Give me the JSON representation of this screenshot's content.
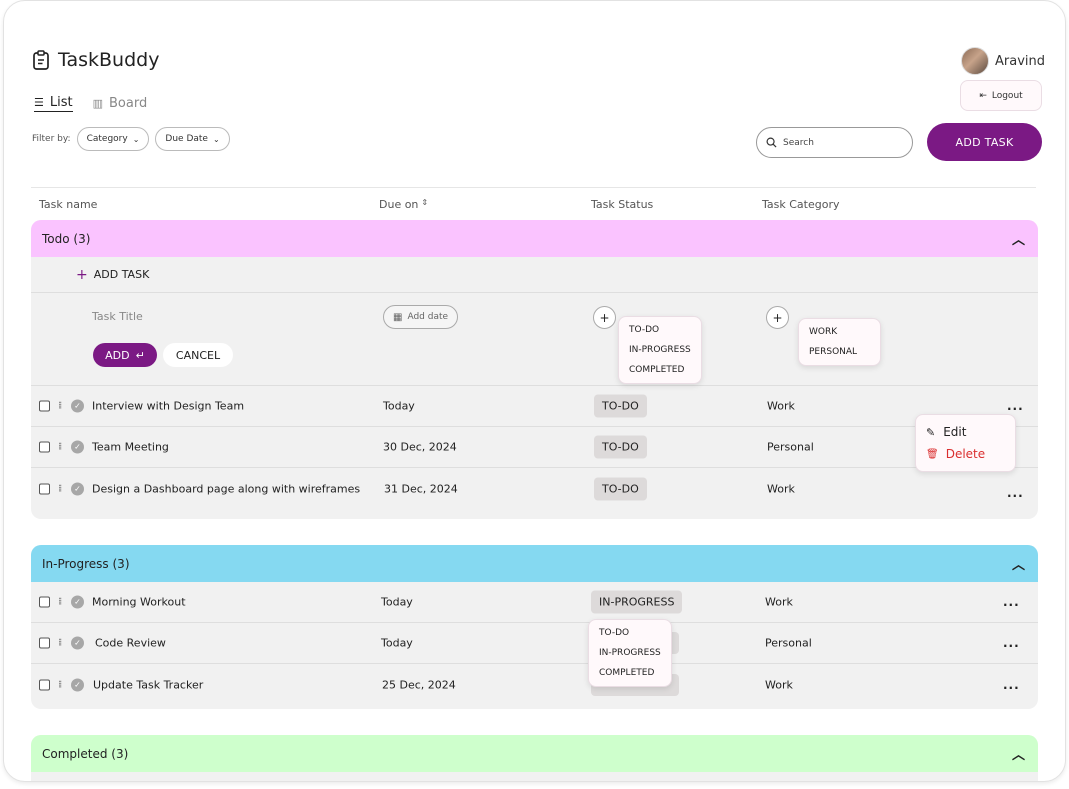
{
  "app": {
    "title": "TaskBuddy"
  },
  "views": [
    {
      "label": "List",
      "icon": "list-icon",
      "active": true
    },
    {
      "label": "Board",
      "icon": "board-icon",
      "active": false
    }
  ],
  "filters": {
    "label": "Filter by:",
    "category": "Category",
    "due_date": "Due Date"
  },
  "user": {
    "name": "Aravind",
    "logout_label": "Logout"
  },
  "search": {
    "placeholder": "Search"
  },
  "add_task_button": "ADD TASK",
  "columns": {
    "name": "Task name",
    "due": "Due on",
    "status": "Task Status",
    "category": "Task Category"
  },
  "todo": {
    "title": "Todo (3)",
    "add_task_label": "ADD TASK",
    "form": {
      "title_placeholder": "Task Title",
      "add_date": "Add date",
      "add_label": "ADD",
      "cancel_label": "CANCEL",
      "status_options": [
        "TO-DO",
        "IN-PROGRESS",
        "COMPLETED"
      ],
      "category_options": [
        "WORK",
        "PERSONAL"
      ]
    },
    "rows": [
      {
        "name": "Interview with Design Team",
        "due": "Today",
        "status": "TO-DO",
        "category": "Work"
      },
      {
        "name": "Team Meeting",
        "due": "30 Dec, 2024",
        "status": "TO-DO",
        "category": "Personal"
      },
      {
        "name": "Design a Dashboard page along with wireframes",
        "due": "31 Dec, 2024",
        "status": "TO-DO",
        "category": "Work"
      }
    ],
    "row_menu": {
      "edit": "Edit",
      "delete": "Delete"
    }
  },
  "inprogress": {
    "title": "In-Progress (3)",
    "rows": [
      {
        "name": "Morning Workout",
        "due": "Today",
        "status": "IN-PROGRESS",
        "category": "Work"
      },
      {
        "name": "Code Review",
        "due": "Today",
        "status": "",
        "category": "Personal"
      },
      {
        "name": "Update Task Tracker",
        "due": "25 Dec, 2024",
        "status": "",
        "category": "Work"
      }
    ],
    "status_options": [
      "TO-DO",
      "IN-PROGRESS",
      "COMPLETED"
    ]
  },
  "completed": {
    "title": "Completed (3)"
  },
  "colors": {
    "brand": "#7b1984",
    "todo_header": "#fac3ff",
    "inprogress_header": "#85d9f1",
    "completed_header": "#ceffcc",
    "delete": "#da2f2f"
  },
  "more_label": "..."
}
